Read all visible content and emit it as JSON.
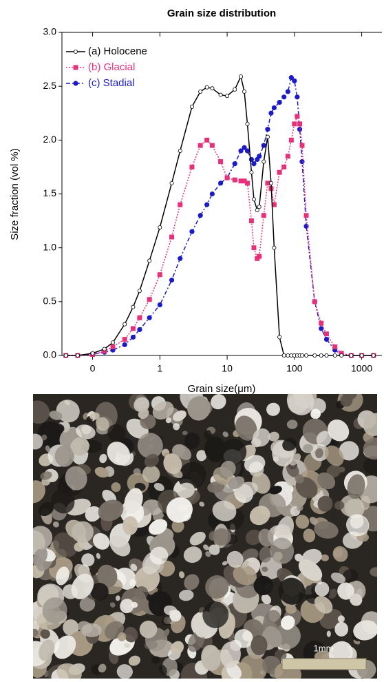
{
  "chart_data": {
    "type": "line",
    "title": "Grain size distribution",
    "x_label": "Grain size(μm)",
    "y_label": "Size fraction (vol %)",
    "x_scale": "log",
    "legend": "upper left",
    "x": [
      0.04,
      0.06,
      0.1,
      0.15,
      0.2,
      0.3,
      0.4,
      0.5,
      0.7,
      1,
      1.5,
      2,
      3,
      4,
      5,
      6,
      8,
      10,
      13,
      16,
      18,
      20,
      23,
      25,
      28,
      30,
      35,
      40,
      45,
      50,
      60,
      70,
      80,
      90,
      100,
      110,
      120,
      130,
      150,
      200,
      250,
      300,
      400,
      500,
      700,
      1000,
      1500
    ],
    "series": [
      {
        "name": "(a) Holocene",
        "color": "#000000",
        "marker": "open-circle",
        "dash": "solid",
        "values": [
          0,
          0,
          0.02,
          0.06,
          0.12,
          0.29,
          0.45,
          0.6,
          0.88,
          1.19,
          1.6,
          1.9,
          2.31,
          2.45,
          2.49,
          2.48,
          2.42,
          2.41,
          2.47,
          2.59,
          2.45,
          2.15,
          1.7,
          1.45,
          1.35,
          1.38,
          1.8,
          2.03,
          1.6,
          1.0,
          0.17,
          0,
          0,
          0,
          0,
          0,
          0,
          0,
          0,
          0,
          0,
          0,
          0,
          0,
          0,
          0,
          0
        ]
      },
      {
        "name": "(b) Glacial",
        "color": "#e8307a",
        "marker": "square",
        "dash": "dotted",
        "values": [
          0,
          0,
          0.01,
          0.04,
          0.08,
          0.15,
          0.25,
          0.35,
          0.52,
          0.75,
          1.1,
          1.4,
          1.75,
          1.95,
          2.0,
          1.95,
          1.8,
          1.65,
          1.63,
          1.62,
          1.62,
          1.6,
          1.25,
          1.0,
          0.9,
          0.92,
          1.3,
          1.6,
          1.55,
          1.4,
          1.7,
          1.75,
          1.85,
          2.0,
          2.15,
          2.22,
          2.15,
          1.95,
          1.3,
          0.5,
          0.3,
          0.2,
          0.08,
          0.02,
          0,
          0,
          0
        ]
      },
      {
        "name": "(c) Stadial",
        "color": "#1a1acc",
        "marker": "filled-circle",
        "dash": "dashdot",
        "values": [
          0,
          0,
          0.01,
          0.03,
          0.05,
          0.1,
          0.17,
          0.24,
          0.35,
          0.47,
          0.7,
          0.9,
          1.15,
          1.3,
          1.4,
          1.5,
          1.6,
          1.65,
          1.78,
          1.9,
          1.93,
          1.9,
          1.82,
          1.78,
          1.82,
          1.85,
          1.95,
          2.1,
          2.25,
          2.3,
          2.35,
          2.4,
          2.45,
          2.58,
          2.55,
          2.4,
          2.1,
          1.8,
          1.2,
          0.5,
          0.25,
          0.15,
          0.05,
          0.01,
          0,
          0,
          0
        ]
      }
    ],
    "xlim": [
      0.035,
      2000
    ],
    "xticks": [
      {
        "value": 0.1,
        "label": "0"
      },
      1,
      10,
      100,
      1000
    ],
    "ylim": [
      0,
      3
    ],
    "yticks": [
      {
        "value": 0,
        "label": "0.0"
      },
      {
        "value": 0.5,
        "label": "0.5"
      },
      {
        "value": 1,
        "label": "1.0"
      },
      {
        "value": 1.5,
        "label": "1.5"
      },
      {
        "value": 2,
        "label": "2.0"
      },
      {
        "value": 2.5,
        "label": "2.5"
      },
      {
        "value": 3,
        "label": "3.0"
      }
    ]
  },
  "photo": {
    "scale_label": "1mm"
  }
}
